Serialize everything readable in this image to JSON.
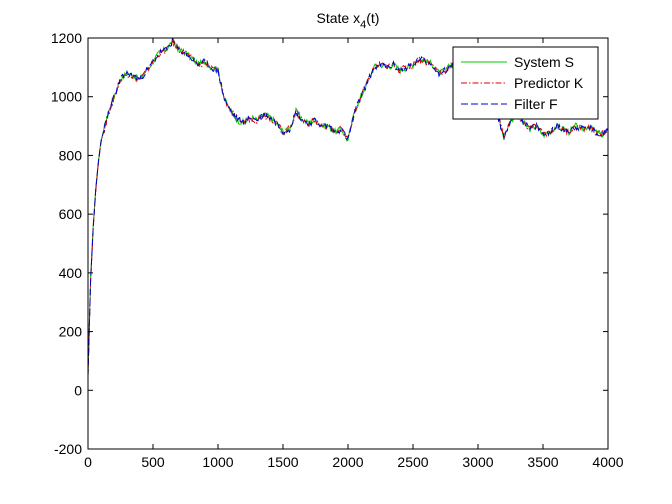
{
  "chart_data": {
    "type": "line",
    "title": "State x",
    "title_subscript": "4",
    "title_suffix": "(t)",
    "xlabel": "",
    "ylabel": "",
    "xlim": [
      0,
      4000
    ],
    "ylim": [
      -200,
      1200
    ],
    "xticks": [
      0,
      500,
      1000,
      1500,
      2000,
      2500,
      3000,
      3500,
      4000
    ],
    "yticks": [
      -200,
      0,
      200,
      400,
      600,
      800,
      1000,
      1200
    ],
    "grid": false,
    "legend_position": "top-right",
    "series": [
      {
        "name": "System S",
        "color": "#00cc00",
        "dash": "solid",
        "x": [
          0,
          20,
          40,
          60,
          80,
          100,
          130,
          160,
          200,
          250,
          300,
          350,
          400,
          450,
          500,
          550,
          600,
          650,
          700,
          750,
          800,
          850,
          900,
          950,
          1000,
          1050,
          1100,
          1150,
          1200,
          1250,
          1300,
          1350,
          1400,
          1450,
          1500,
          1550,
          1600,
          1650,
          1700,
          1750,
          1800,
          1850,
          1900,
          1950,
          2000,
          2050,
          2100,
          2150,
          2200,
          2250,
          2300,
          2350,
          2400,
          2450,
          2500,
          2550,
          2600,
          2650,
          2700,
          2750,
          2800,
          2850,
          2900,
          2950,
          3000,
          3050,
          3100,
          3150,
          3200,
          3250,
          3300,
          3350,
          3400,
          3450,
          3500,
          3550,
          3600,
          3650,
          3700,
          3750,
          3800,
          3850,
          3900,
          3950,
          4000
        ],
        "y": [
          50,
          380,
          560,
          690,
          780,
          850,
          900,
          950,
          1000,
          1060,
          1080,
          1070,
          1060,
          1090,
          1120,
          1150,
          1160,
          1190,
          1160,
          1150,
          1130,
          1110,
          1120,
          1100,
          1090,
          990,
          950,
          920,
          910,
          930,
          920,
          940,
          930,
          910,
          880,
          890,
          950,
          920,
          910,
          920,
          900,
          900,
          880,
          890,
          850,
          950,
          1000,
          1050,
          1100,
          1110,
          1100,
          1110,
          1090,
          1100,
          1110,
          1130,
          1120,
          1110,
          1080,
          1090,
          1110,
          1100,
          1100,
          1080,
          1100,
          1080,
          1000,
          940,
          860,
          920,
          940,
          910,
          890,
          900,
          870,
          880,
          900,
          890,
          880,
          900,
          890,
          900,
          880,
          870,
          890
        ]
      },
      {
        "name": "Predictor K",
        "color": "#dd0000",
        "dash": "dashdot",
        "x": [
          0,
          20,
          40,
          60,
          80,
          100,
          130,
          160,
          200,
          250,
          300,
          350,
          400,
          450,
          500,
          550,
          600,
          650,
          700,
          750,
          800,
          850,
          900,
          950,
          1000,
          1050,
          1100,
          1150,
          1200,
          1250,
          1300,
          1350,
          1400,
          1450,
          1500,
          1550,
          1600,
          1650,
          1700,
          1750,
          1800,
          1850,
          1900,
          1950,
          2000,
          2050,
          2100,
          2150,
          2200,
          2250,
          2300,
          2350,
          2400,
          2450,
          2500,
          2550,
          2600,
          2650,
          2700,
          2750,
          2800,
          2850,
          2900,
          2950,
          3000,
          3050,
          3100,
          3150,
          3200,
          3250,
          3300,
          3350,
          3400,
          3450,
          3500,
          3550,
          3600,
          3650,
          3700,
          3750,
          3800,
          3850,
          3900,
          3950,
          4000
        ],
        "y": [
          50,
          370,
          550,
          680,
          775,
          845,
          898,
          948,
          998,
          1058,
          1078,
          1068,
          1058,
          1088,
          1118,
          1148,
          1158,
          1185,
          1158,
          1148,
          1128,
          1108,
          1118,
          1098,
          1088,
          992,
          952,
          922,
          912,
          928,
          920,
          938,
          928,
          910,
          882,
          890,
          946,
          920,
          910,
          918,
          900,
          900,
          882,
          890,
          855,
          945,
          998,
          1048,
          1098,
          1108,
          1100,
          1108,
          1090,
          1100,
          1108,
          1128,
          1118,
          1108,
          1082,
          1090,
          1108,
          1100,
          1098,
          1082,
          1098,
          1080,
          1002,
          942,
          865,
          918,
          938,
          910,
          892,
          900,
          872,
          880,
          898,
          890,
          882,
          898,
          890,
          898,
          880,
          872,
          888
        ]
      },
      {
        "name": "Filter F",
        "color": "#0000cc",
        "dash": "dashed",
        "x": [
          0,
          20,
          40,
          60,
          80,
          100,
          130,
          160,
          200,
          250,
          300,
          350,
          400,
          450,
          500,
          550,
          600,
          650,
          700,
          750,
          800,
          850,
          900,
          950,
          1000,
          1050,
          1100,
          1150,
          1200,
          1250,
          1300,
          1350,
          1400,
          1450,
          1500,
          1550,
          1600,
          1650,
          1700,
          1750,
          1800,
          1850,
          1900,
          1950,
          2000,
          2050,
          2100,
          2150,
          2200,
          2250,
          2300,
          2350,
          2400,
          2450,
          2500,
          2550,
          2600,
          2650,
          2700,
          2750,
          2800,
          2850,
          2900,
          2950,
          3000,
          3050,
          3100,
          3150,
          3200,
          3250,
          3300,
          3350,
          3400,
          3450,
          3500,
          3550,
          3600,
          3650,
          3700,
          3750,
          3800,
          3850,
          3900,
          3950,
          4000
        ],
        "y": [
          50,
          375,
          555,
          686,
          778,
          848,
          899,
          949,
          999,
          1059,
          1079,
          1069,
          1059,
          1089,
          1119,
          1149,
          1159,
          1188,
          1159,
          1149,
          1129,
          1109,
          1119,
          1099,
          1089,
          991,
          951,
          921,
          911,
          929,
          920,
          939,
          929,
          910,
          881,
          890,
          948,
          920,
          910,
          919,
          900,
          900,
          881,
          890,
          852,
          948,
          999,
          1049,
          1099,
          1109,
          1100,
          1109,
          1090,
          1100,
          1109,
          1129,
          1119,
          1109,
          1081,
          1090,
          1109,
          1100,
          1099,
          1081,
          1099,
          1080,
          1001,
          941,
          862,
          919,
          939,
          910,
          891,
          900,
          871,
          880,
          899,
          890,
          881,
          899,
          890,
          899,
          880,
          871,
          889
        ]
      }
    ]
  }
}
